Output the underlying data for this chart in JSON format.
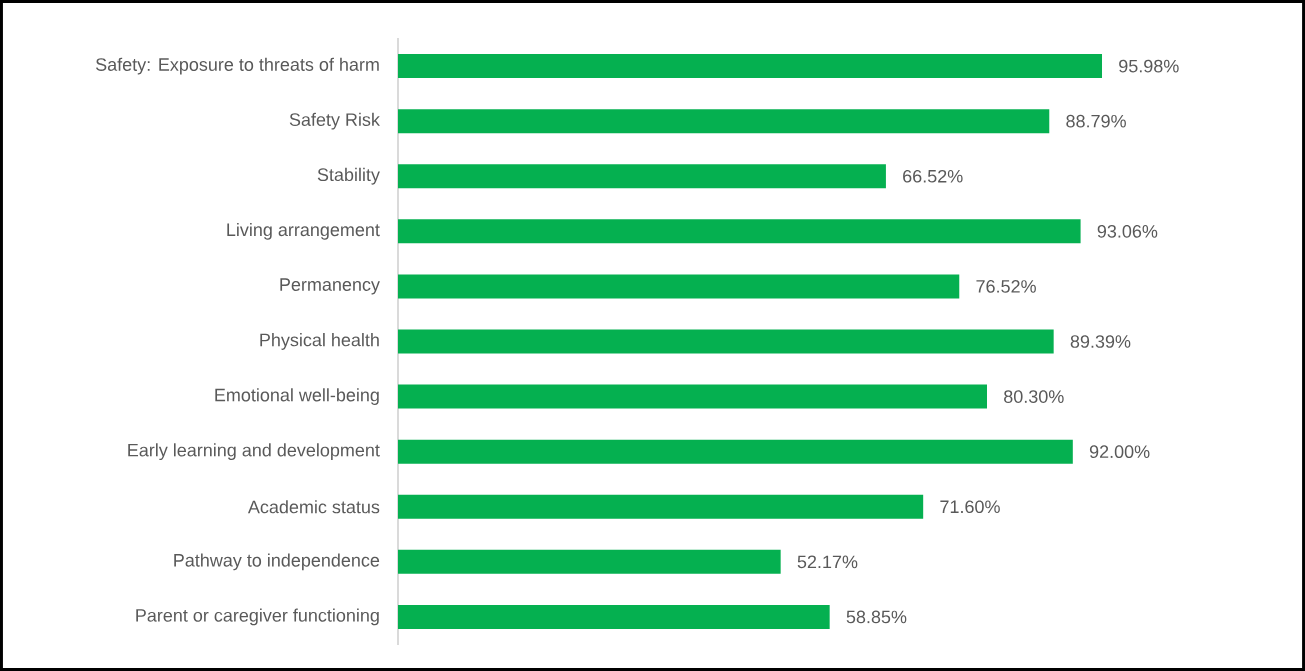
{
  "chart_data": {
    "type": "bar",
    "orientation": "horizontal",
    "color": "#05b050",
    "tick_labels": "y",
    "categories": [
      "Safety: Exposure to threats of harm",
      "Safety Risk",
      "Stability",
      "Living arrangement",
      "Permanency",
      "Physical health",
      "Emotional well-being",
      "Early learning and development",
      "Academic status",
      "Pathway to independence",
      "Parent or caregiver functioning"
    ],
    "values": [
      95.98,
      88.79,
      66.52,
      93.06,
      76.52,
      89.39,
      80.3,
      92.0,
      71.6,
      52.17,
      58.85
    ],
    "value_labels": [
      "95.98%",
      "88.79%",
      "66.52%",
      "93.06%",
      "76.52%",
      "89.39%",
      "80.30%",
      "92.00%",
      "71.60%",
      "52.17%",
      "58.85%"
    ]
  }
}
